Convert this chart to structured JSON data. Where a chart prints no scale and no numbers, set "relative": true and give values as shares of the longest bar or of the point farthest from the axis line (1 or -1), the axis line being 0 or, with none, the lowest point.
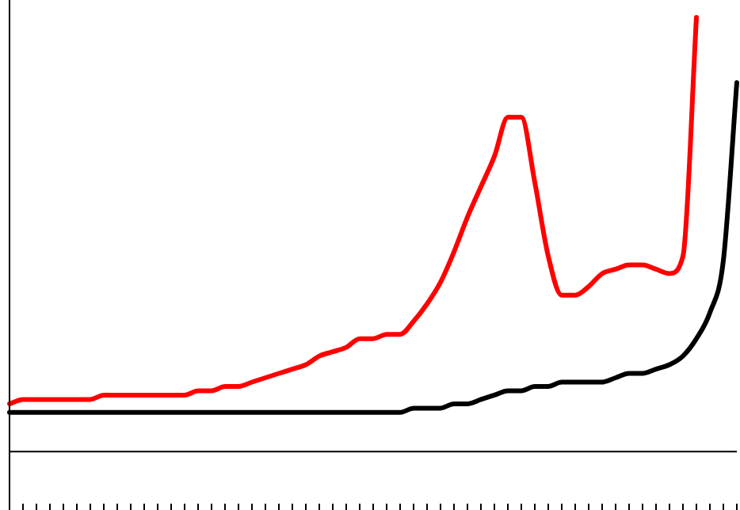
{
  "chart_data": {
    "type": "line",
    "relative": true,
    "legend": false,
    "grid": false,
    "marker": "none",
    "line_style": "solid",
    "categories": [
      null,
      null,
      null,
      null,
      null,
      null,
      null,
      null,
      null,
      null,
      null,
      null,
      null,
      null,
      null,
      null,
      null,
      null,
      null,
      null,
      null,
      null,
      null,
      null,
      null,
      null,
      null,
      null,
      null,
      null,
      null,
      null,
      null,
      null,
      null,
      null,
      null,
      null,
      null,
      null,
      null,
      null,
      null,
      null,
      null,
      null,
      null,
      null,
      null,
      null,
      null,
      null,
      null,
      null,
      null
    ],
    "series": [
      {
        "color": "#ff0000",
        "values": [
          0.11,
          0.12,
          0.12,
          0.12,
          0.12,
          0.12,
          0.12,
          0.13,
          0.13,
          0.13,
          0.13,
          0.13,
          0.13,
          0.13,
          0.14,
          0.14,
          0.15,
          0.15,
          0.16,
          0.17,
          0.18,
          0.19,
          0.2,
          0.22,
          0.23,
          0.24,
          0.26,
          0.26,
          0.27,
          0.27,
          0.3,
          0.34,
          0.39,
          0.46,
          0.54,
          0.61,
          0.68,
          0.77,
          0.77,
          0.62,
          0.45,
          0.36,
          0.36,
          0.38,
          0.41,
          0.42,
          0.43,
          0.43,
          0.42,
          0.41,
          0.45,
          1,
          null,
          null,
          null
        ]
      },
      {
        "color": "#000000",
        "values": [
          0.09,
          0.09,
          0.09,
          0.09,
          0.09,
          0.09,
          0.09,
          0.09,
          0.09,
          0.09,
          0.09,
          0.09,
          0.09,
          0.09,
          0.09,
          0.09,
          0.09,
          0.09,
          0.09,
          0.09,
          0.09,
          0.09,
          0.09,
          0.09,
          0.09,
          0.09,
          0.09,
          0.09,
          0.09,
          0.09,
          0.1,
          0.1,
          0.1,
          0.11,
          0.11,
          0.12,
          0.13,
          0.14,
          0.14,
          0.15,
          0.15,
          0.16,
          0.16,
          0.16,
          0.16,
          0.17,
          0.18,
          0.18,
          0.19,
          0.2,
          0.22,
          0.26,
          0.32,
          0.44,
          0.85
        ]
      }
    ]
  }
}
